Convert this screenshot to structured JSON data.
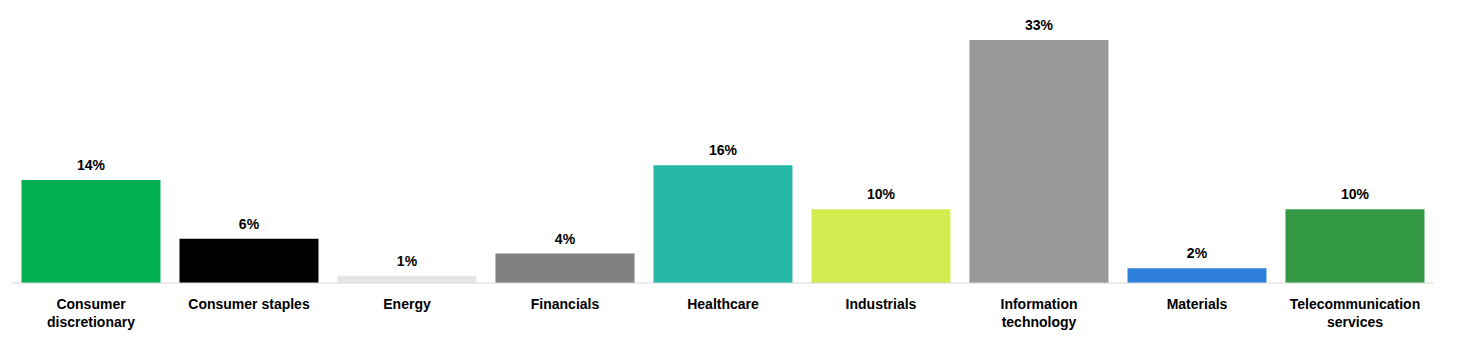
{
  "chart_data": {
    "type": "bar",
    "categories": [
      "Consumer discretionary",
      "Consumer staples",
      "Energy",
      "Financials",
      "Healthcare",
      "Industrials",
      "Information technology",
      "Materials",
      "Telecommunication services"
    ],
    "values": [
      14,
      6,
      1,
      4,
      16,
      10,
      33,
      2,
      10
    ],
    "value_labels": [
      "14%",
      "6%",
      "1%",
      "4%",
      "16%",
      "10%",
      "33%",
      "2%",
      "10%"
    ],
    "colors": [
      "#00b050",
      "#000000",
      "#e6e6e6",
      "#808080",
      "#26b8a6",
      "#d4ec50",
      "#999999",
      "#2e7fdc",
      "#339944"
    ],
    "data_labels": true,
    "tick_labels": "x",
    "grid": false
  }
}
